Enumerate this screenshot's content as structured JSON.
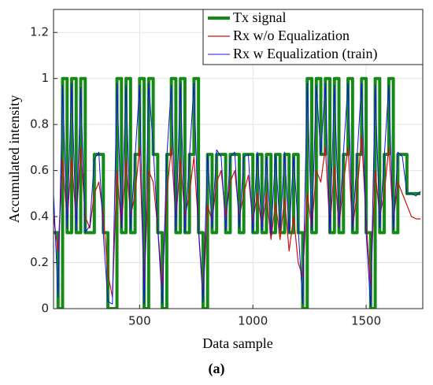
{
  "chart_data": {
    "type": "line",
    "xlabel": "Data sample",
    "ylabel": "Accumulated intensity",
    "caption": "(a)",
    "x": [
      120,
      140,
      160,
      180,
      200,
      220,
      240,
      260,
      280,
      300,
      320,
      340,
      360,
      380,
      400,
      420,
      440,
      460,
      480,
      500,
      520,
      540,
      560,
      580,
      600,
      620,
      640,
      660,
      680,
      700,
      720,
      740,
      760,
      780,
      800,
      820,
      840,
      860,
      880,
      900,
      920,
      940,
      960,
      980,
      1000,
      1020,
      1040,
      1060,
      1080,
      1100,
      1120,
      1140,
      1160,
      1180,
      1200,
      1220,
      1240,
      1260,
      1280,
      1300,
      1320,
      1340,
      1360,
      1380,
      1400,
      1420,
      1440,
      1460,
      1480,
      1500,
      1520,
      1540,
      1560,
      1580,
      1600,
      1620,
      1640,
      1660,
      1680,
      1700,
      1720,
      1740
    ],
    "series": [
      {
        "name": "Tx signal",
        "color": "#168a16",
        "width": 4,
        "drawstyle": "steps-post",
        "values": [
          0.33,
          0,
          1,
          0.33,
          1,
          0.33,
          1,
          0.33,
          0.33,
          0.67,
          0.67,
          0.33,
          0,
          0,
          1,
          0.33,
          1,
          0.33,
          0.67,
          1,
          0,
          1,
          0.67,
          0.33,
          0,
          0.67,
          1,
          0.33,
          1,
          0.33,
          0.67,
          1,
          0.33,
          0,
          0.67,
          0.33,
          0.67,
          0.67,
          0.33,
          0.67,
          0.67,
          0.33,
          0.67,
          0.67,
          0.33,
          0.67,
          0.33,
          0.67,
          0.33,
          0.67,
          0.33,
          0.67,
          0.33,
          0.67,
          0.33,
          0,
          1,
          0.33,
          1,
          0.67,
          1,
          0.33,
          1,
          0.33,
          0.67,
          1,
          0.33,
          0.67,
          1,
          0.33,
          0,
          1,
          0.33,
          0.67,
          1,
          0.33,
          0.67,
          0.67,
          0.5,
          0.5,
          0.5,
          0.5
        ]
      },
      {
        "name": "Rx w/o Equalization",
        "color": "#cc1111",
        "width": 1.2,
        "drawstyle": "linear",
        "values": [
          0.4,
          0.25,
          0.65,
          0.38,
          0.65,
          0.38,
          0.7,
          0.4,
          0.35,
          0.5,
          0.55,
          0.4,
          0.15,
          0.05,
          0.6,
          0.35,
          0.65,
          0.4,
          0.5,
          0.7,
          0.1,
          0.6,
          0.55,
          0.35,
          0.1,
          0.5,
          0.7,
          0.38,
          0.65,
          0.4,
          0.5,
          0.66,
          0.35,
          0.05,
          0.45,
          0.38,
          0.55,
          0.6,
          0.4,
          0.55,
          0.6,
          0.4,
          0.5,
          0.58,
          0.38,
          0.5,
          0.35,
          0.5,
          0.3,
          0.46,
          0.3,
          0.48,
          0.25,
          0.4,
          0.2,
          0.14,
          0.5,
          0.35,
          0.6,
          0.55,
          0.7,
          0.35,
          0.62,
          0.35,
          0.55,
          0.7,
          0.35,
          0.5,
          0.75,
          0.38,
          0.1,
          0.6,
          0.4,
          0.5,
          0.7,
          0.38,
          0.55,
          0.5,
          0.45,
          0.4,
          0.39,
          0.39
        ]
      },
      {
        "name": "Rx w Equalization (train)",
        "color": "#1010ee",
        "width": 1,
        "drawstyle": "linear",
        "values": [
          0.5,
          0.05,
          0.97,
          0.35,
          0.98,
          0.34,
          0.96,
          0.33,
          0.36,
          0.65,
          0.68,
          0.32,
          0.03,
          0.02,
          0.98,
          0.35,
          0.97,
          0.34,
          0.66,
          0.97,
          0.02,
          0.98,
          0.7,
          0.35,
          0.02,
          0.66,
          0.97,
          0.34,
          0.98,
          0.33,
          0.66,
          0.98,
          0.34,
          0.03,
          0.67,
          0.35,
          0.69,
          0.66,
          0.34,
          0.66,
          0.68,
          0.35,
          0.66,
          0.67,
          0.33,
          0.68,
          0.34,
          0.66,
          0.32,
          0.67,
          0.34,
          0.68,
          0.33,
          0.66,
          0.35,
          0.02,
          0.98,
          0.34,
          0.97,
          0.67,
          0.98,
          0.33,
          0.97,
          0.35,
          0.68,
          0.98,
          0.34,
          0.66,
          0.98,
          0.33,
          0.01,
          0.97,
          0.35,
          0.66,
          0.97,
          0.34,
          0.68,
          0.66,
          0.5,
          0.5,
          0.49,
          0.51
        ]
      }
    ],
    "xlim": [
      120,
      1750
    ],
    "xticks": [
      500,
      1000,
      1500
    ],
    "ylim": [
      0,
      1.3
    ],
    "yticks": [
      0,
      0.2,
      0.4,
      0.6,
      0.8,
      1,
      1.2
    ],
    "grid": true,
    "legend": "upper right"
  }
}
